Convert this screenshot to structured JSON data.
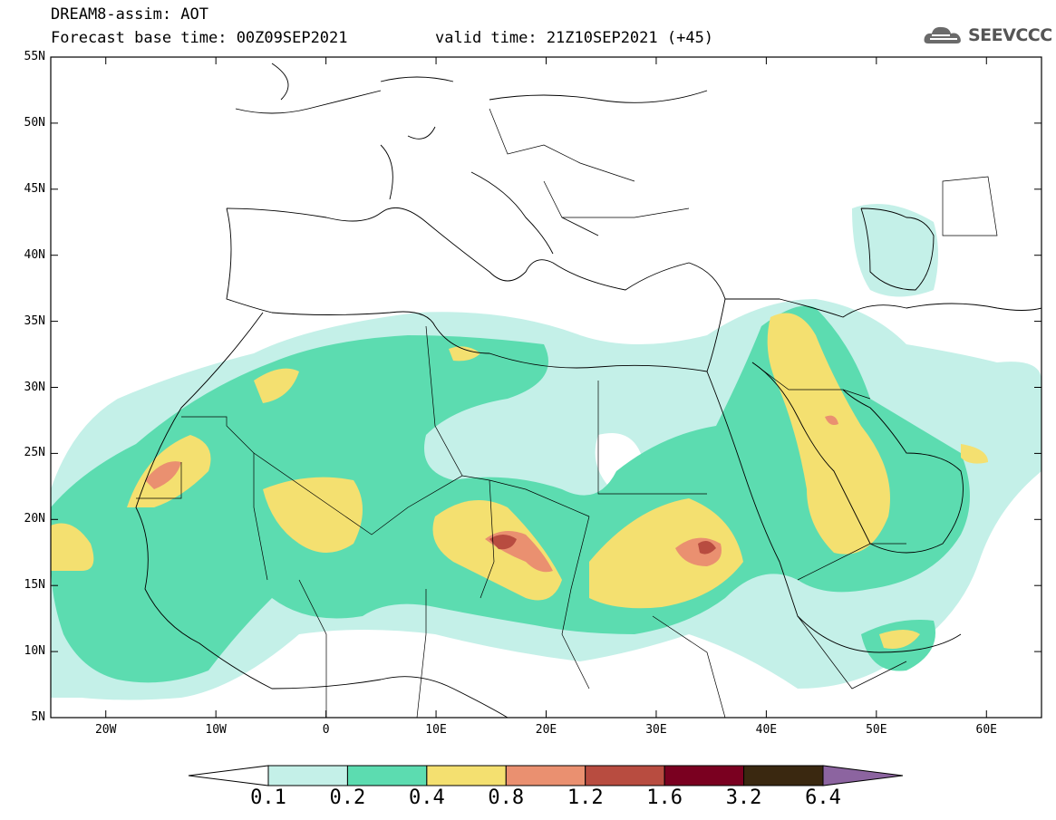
{
  "header": {
    "title_line1": "DREAM8-assim: AOT",
    "title_line2": "Forecast base time: 00Z09SEP2021",
    "valid_time": "valid time: 21Z10SEP2021 (+45)",
    "logo_text": "SEEVCCC",
    "logo_icon": "cloud-icon"
  },
  "map": {
    "projection": "lat-lon",
    "lon_range": [
      -25,
      65
    ],
    "lat_range": [
      5,
      55
    ],
    "lat_labels": [
      "55N",
      "50N",
      "45N",
      "40N",
      "35N",
      "30N",
      "25N",
      "20N",
      "15N",
      "10N",
      "5N"
    ],
    "lon_labels": [
      "20W",
      "10W",
      "0",
      "10E",
      "20E",
      "30E",
      "40E",
      "50E",
      "60E"
    ]
  },
  "colorbar": {
    "levels": [
      "0.1",
      "0.2",
      "0.4",
      "0.8",
      "1.2",
      "1.6",
      "3.2",
      "6.4"
    ],
    "colors": [
      "#ffffff",
      "#c4f0e8",
      "#5cdcb0",
      "#f4e070",
      "#ea9070",
      "#b84c40",
      "#7a0020",
      "#3a2810",
      "#8c64a0"
    ]
  }
}
